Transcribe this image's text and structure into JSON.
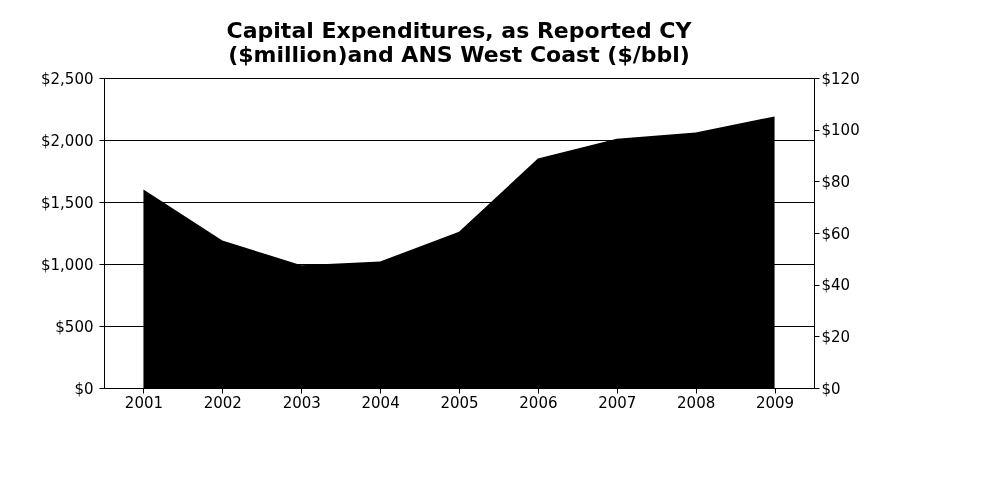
{
  "chart_data": {
    "type": "area",
    "title": [
      "Capital Expenditures, as Reported CY",
      "($million)and ANS West Coast ($/bbl)"
    ],
    "categories": [
      "2001",
      "2002",
      "2003",
      "2004",
      "2005",
      "2006",
      "2007",
      "2008",
      "2009"
    ],
    "series": [
      {
        "color": "#000000",
        "values": [
          1600,
          1190,
          990,
          1020,
          1260,
          1850,
          2010,
          2060,
          2190
        ]
      }
    ],
    "ylim": [
      0,
      2500
    ],
    "yticks": [
      {
        "value": 0,
        "label": "$0"
      },
      {
        "value": 500,
        "label": "$500"
      },
      {
        "value": 1000,
        "label": "$1,000"
      },
      {
        "value": 1500,
        "label": "$1,500"
      },
      {
        "value": 2000,
        "label": "$2,000"
      },
      {
        "value": 2500,
        "label": "$2,500"
      }
    ],
    "y2lim": [
      0,
      120
    ],
    "y2ticks": [
      {
        "value": 0,
        "label": "$0"
      },
      {
        "value": 20,
        "label": "$20"
      },
      {
        "value": 40,
        "label": "$40"
      },
      {
        "value": 60,
        "label": "$60"
      },
      {
        "value": 80,
        "label": "$80"
      },
      {
        "value": 100,
        "label": "$100"
      },
      {
        "value": 120,
        "label": "$120"
      }
    ],
    "grid": "y"
  }
}
